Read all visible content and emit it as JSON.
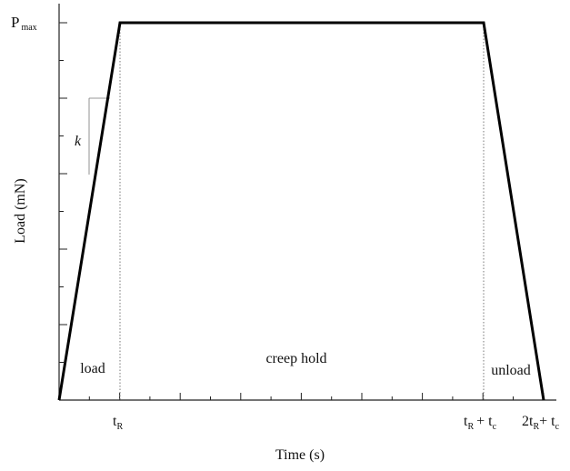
{
  "y_axis": {
    "label": "Load (mN)",
    "max_label": [
      [
        "P",
        "max"
      ]
    ]
  },
  "x_axis": {
    "label": "Time (s)",
    "ticks": [
      [
        [
          "t",
          "R"
        ]
      ],
      [
        [
          "t",
          "R"
        ],
        [
          "+ t",
          "c"
        ]
      ],
      [
        [
          "2t",
          "R"
        ],
        [
          "+ t",
          "c"
        ]
      ]
    ]
  },
  "regions": [
    "load",
    "creep hold",
    "unload"
  ],
  "slope_label": "k"
}
